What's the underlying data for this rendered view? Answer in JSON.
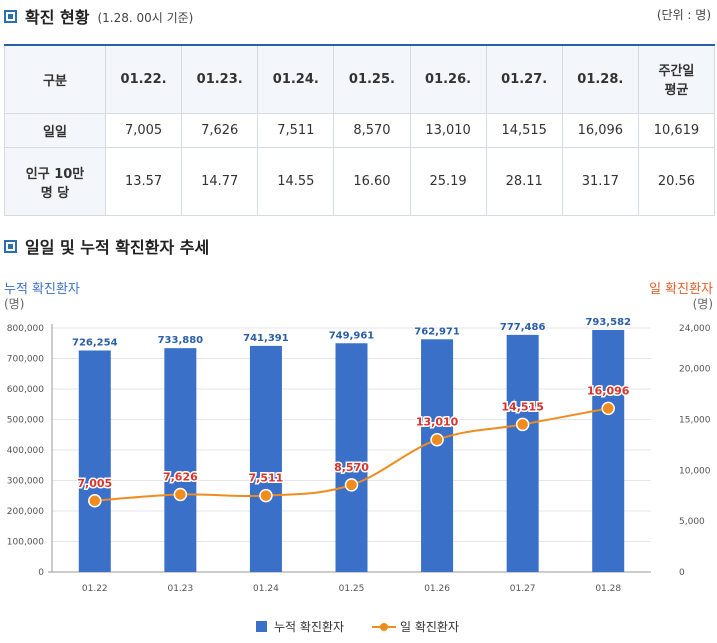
{
  "section1": {
    "title": "확진 현황",
    "subtitle": "(1.28. 00시 기준)",
    "unit": "(단위 : 명)"
  },
  "table": {
    "header_label": "구분",
    "columns": [
      "01.22.",
      "01.23.",
      "01.24.",
      "01.25.",
      "01.26.",
      "01.27.",
      "01.28."
    ],
    "avg_header_line1": "주간일",
    "avg_header_line2": "평균",
    "rows": [
      {
        "label_line1": "일일",
        "label_line2": "",
        "values": [
          "7,005",
          "7,626",
          "7,511",
          "8,570",
          "13,010",
          "14,515",
          "16,096"
        ],
        "avg": "10,619"
      },
      {
        "label_line1": "인구 10만",
        "label_line2": "명 당",
        "values": [
          "13.57",
          "14.77",
          "14.55",
          "16.60",
          "25.19",
          "28.11",
          "31.17"
        ],
        "avg": "20.56"
      }
    ]
  },
  "section2": {
    "title": "일일 및 누적 확진환자 추세"
  },
  "colors": {
    "bar": "#3a70c8",
    "line": "#f08c1e",
    "line_label": "#d9342b",
    "bar_label": "#2a5ea8",
    "left_title": "#3a70c8",
    "right_title": "#e0612b"
  },
  "chart_data": {
    "type": "bar",
    "categories": [
      "01.22",
      "01.23",
      "01.24",
      "01.25",
      "01.26",
      "01.27",
      "01.28"
    ],
    "series": [
      {
        "name": "누적 확진환자",
        "type": "bar",
        "axis": "left",
        "values": [
          726254,
          733880,
          741391,
          749961,
          762971,
          777486,
          793582
        ],
        "labels": [
          "726,254",
          "733,880",
          "741,391",
          "749,961",
          "762,971",
          "777,486",
          "793,582"
        ]
      },
      {
        "name": "일 확진환자",
        "type": "line",
        "axis": "right",
        "values": [
          7005,
          7626,
          7511,
          8570,
          13010,
          14515,
          16096
        ],
        "labels": [
          "7,005",
          "7,626",
          "7,511",
          "8,570",
          "13,010",
          "14,515",
          "16,096"
        ]
      }
    ],
    "left_axis": {
      "title": "누적 확진환자",
      "unit": "(명)",
      "ylim": [
        0,
        800000
      ],
      "ticks": [
        "0",
        "100,000",
        "200,000",
        "300,000",
        "400,000",
        "500,000",
        "600,000",
        "700,000",
        "800,000"
      ]
    },
    "right_axis": {
      "title": "일 확진환자",
      "unit": "(명)",
      "ylim": [
        0,
        24000
      ],
      "ticks": [
        "0",
        "5,000",
        "10,000",
        "15,000",
        "20,000",
        "24,000"
      ],
      "tick_values": [
        0,
        5000,
        10000,
        15000,
        20000,
        24000
      ]
    },
    "legend": {
      "bar_label": "누적 확진환자",
      "line_label": "일 확진환자",
      "position": "bottom-center"
    }
  }
}
